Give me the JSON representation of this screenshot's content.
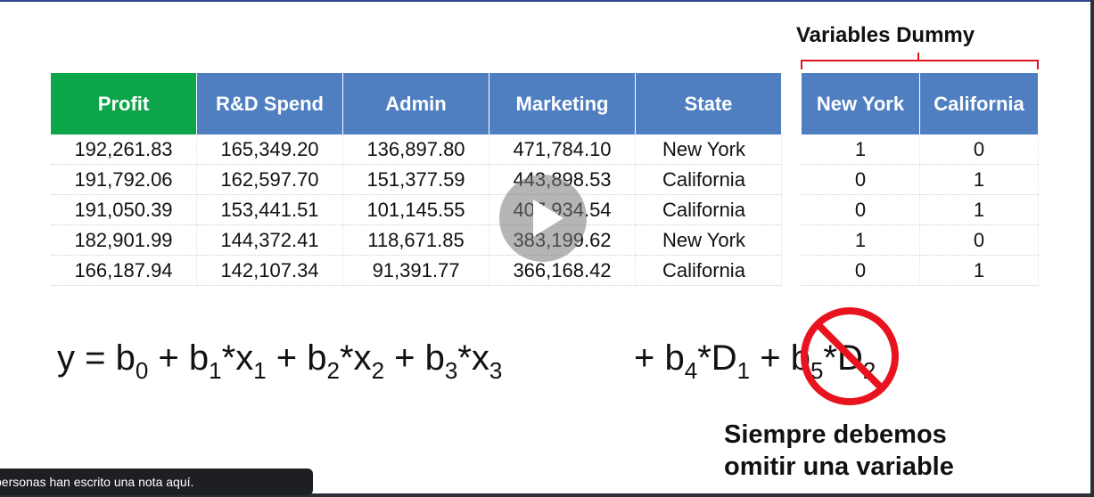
{
  "slide": {
    "dummy_title": "Variables Dummy",
    "table": {
      "headers": [
        "Profit",
        "R&D Spend",
        "Admin",
        "Marketing",
        "State"
      ],
      "rows": [
        [
          "192,261.83",
          "165,349.20",
          "136,897.80",
          "471,784.10",
          "New York"
        ],
        [
          "191,792.06",
          "162,597.70",
          "151,377.59",
          "443,898.53",
          "California"
        ],
        [
          "191,050.39",
          "153,441.51",
          "101,145.55",
          "407,934.54",
          "California"
        ],
        [
          "182,901.99",
          "144,372.41",
          "118,671.85",
          "383,199.62",
          "New York"
        ],
        [
          "166,187.94",
          "142,107.34",
          "91,391.77",
          "366,168.42",
          "California"
        ]
      ]
    },
    "dummy_table": {
      "headers": [
        "New York",
        "California"
      ],
      "rows": [
        [
          "1",
          "0"
        ],
        [
          "0",
          "1"
        ],
        [
          "0",
          "1"
        ],
        [
          "1",
          "0"
        ],
        [
          "0",
          "1"
        ]
      ]
    },
    "formula_main": [
      "y = b",
      "0",
      " + b",
      "1",
      "*x",
      "1",
      " + b",
      "2",
      "*x",
      "2",
      " + b",
      "3",
      "*x",
      "3"
    ],
    "formula_dummy": [
      "+ b",
      "4",
      "*D",
      "1",
      " + b",
      "5",
      "*D",
      "2"
    ],
    "note_line1": "Siempre debemos",
    "note_line2": "omitir una variable"
  },
  "player": {
    "play_icon": "play-icon",
    "toast_text": "personas han escrito una nota aquí."
  },
  "colors": {
    "header_blue": "#4f7fc1",
    "header_green": "#0da54a",
    "prohibit_red": "#e8131f"
  }
}
